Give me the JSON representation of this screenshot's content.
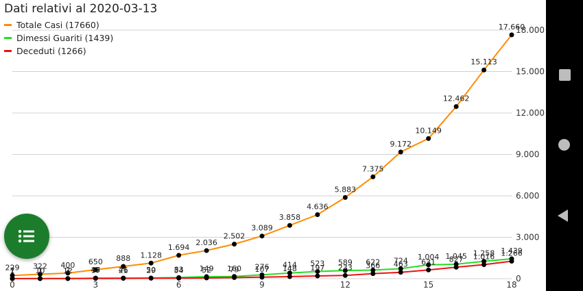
{
  "title": "Dati relativi al 2020-03-13",
  "chart_data": {
    "type": "line",
    "title": "Dati relativi al 2020-03-13",
    "xlabel": "",
    "ylabel": "",
    "xlim": [
      0,
      18
    ],
    "ylim": [
      0,
      18000
    ],
    "x_ticks": [
      0,
      3,
      6,
      9,
      12,
      15,
      18
    ],
    "y_ticks": [
      0,
      3000,
      6000,
      9000,
      12000,
      15000,
      18000
    ],
    "y_tick_labels": [
      "0",
      "3.000",
      "6.000",
      "9.000",
      "12.000",
      "15.000",
      "18.000"
    ],
    "grid": "horizontal",
    "legend_position": "top-left",
    "x": [
      0,
      1,
      2,
      3,
      4,
      5,
      6,
      7,
      8,
      9,
      10,
      11,
      12,
      13,
      14,
      15,
      16,
      17,
      18
    ],
    "series": [
      {
        "name": "Totale Casi (17660)",
        "color": "#ff8c00",
        "values": [
          229,
          322,
          400,
          650,
          888,
          1128,
          1694,
          2036,
          2502,
          3089,
          3858,
          4636,
          5883,
          7375,
          9172,
          10149,
          12462,
          15113,
          17660
        ],
        "labels": [
          "229",
          "322",
          "400",
          "650",
          "888",
          "1.128",
          "1.694",
          "2.036",
          "2.502",
          "3.089",
          "3.858",
          "4.636",
          "5.883",
          "7.375",
          "9.172",
          "10.149",
          "12.462",
          "15.113",
          "17.660"
        ]
      },
      {
        "name": "Dimessi Guariti (1439)",
        "color": "#22dd22",
        "values": [
          1,
          1,
          3,
          45,
          46,
          50,
          83,
          149,
          160,
          276,
          414,
          523,
          589,
          622,
          724,
          1004,
          1045,
          1258,
          1439
        ],
        "labels": [
          "1",
          "1",
          "3",
          "45",
          "46",
          "50",
          "83",
          "149",
          "160",
          "276",
          "414",
          "523",
          "589",
          "622",
          "724",
          "1.004",
          "1.045",
          "1.258",
          "1.439"
        ]
      },
      {
        "name": "Deceduti (1266)",
        "color": "#ee1111",
        "values": [
          7,
          10,
          12,
          17,
          21,
          29,
          34,
          52,
          79,
          107,
          148,
          197,
          233,
          366,
          463,
          631,
          827,
          1016,
          1266
        ],
        "labels": [
          "7",
          "10",
          "12",
          "17",
          "21",
          "29",
          "34",
          "52",
          "79",
          "107",
          "148",
          "197",
          "233",
          "366",
          "463",
          "631",
          "827",
          "1.016",
          "1.266"
        ]
      }
    ]
  },
  "fab": {
    "icon": "list-icon"
  },
  "navbar": {
    "icons": [
      "square-icon",
      "circle-icon",
      "back-triangle-icon"
    ]
  }
}
